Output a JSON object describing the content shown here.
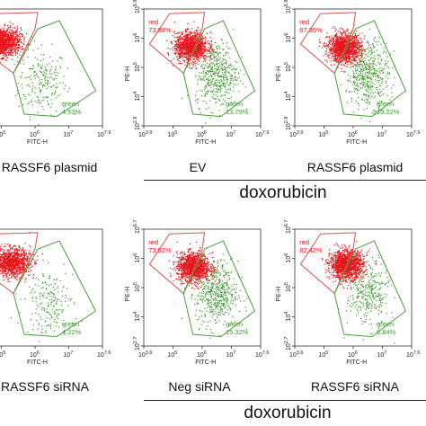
{
  "colors": {
    "red": "#e8141b",
    "green": "#3a9a2a",
    "gate_red": "#d9534f",
    "gate_green": "#4aa03a",
    "axis": "#333333"
  },
  "chart_data": [
    {
      "type": "scatter",
      "caption": "RASSF6 plasmid",
      "xlabel": "FITC-H",
      "ylabel": "",
      "x_ticks": [
        "",
        "10^5",
        "10^6",
        "10^7",
        "10^7.9"
      ],
      "y_ticks": [],
      "gates": [
        {
          "name": "red",
          "percent": ""
        },
        {
          "name": "green",
          "percent": "4.53%"
        }
      ],
      "populations": {
        "red": {
          "cx": 0.25,
          "cy": 0.72,
          "n": 1400
        },
        "green": {
          "cx": 0.55,
          "cy": 0.38,
          "n": 220
        }
      }
    },
    {
      "type": "scatter",
      "caption": "EV",
      "xlabel": "FITC-H",
      "ylabel": "PE-H",
      "x_ticks": [
        "10^3.9",
        "10^5",
        "10^6",
        "10^7",
        "10^7.9"
      ],
      "y_ticks": [
        "10^2.8",
        "10^4",
        "10^5",
        "10^6",
        "10^6.8"
      ],
      "gates": [
        {
          "name": "red",
          "percent": "73.88%"
        },
        {
          "name": "green",
          "percent": "13.79%"
        }
      ],
      "populations": {
        "red": {
          "cx": 0.4,
          "cy": 0.68,
          "n": 1300
        },
        "green": {
          "cx": 0.62,
          "cy": 0.45,
          "n": 480
        }
      }
    },
    {
      "type": "scatter",
      "caption": "RASSF6 plasmid",
      "xlabel": "FITC-H",
      "ylabel": "PE-H",
      "x_ticks": [
        "10^3.9",
        "10^5",
        "10^6",
        "10^7",
        "10^7.9"
      ],
      "y_ticks": [
        "10^2.8",
        "10^4",
        "10^5",
        "10^6",
        "10^6.8"
      ],
      "gates": [
        {
          "name": "red",
          "percent": "67.35%"
        },
        {
          "name": "green",
          "percent": "19.22%"
        }
      ],
      "populations": {
        "red": {
          "cx": 0.42,
          "cy": 0.67,
          "n": 1300
        },
        "green": {
          "cx": 0.62,
          "cy": 0.45,
          "n": 520
        }
      }
    },
    {
      "type": "scatter",
      "caption": "RASSF6 siRNA",
      "xlabel": "FITC-H",
      "ylabel": "",
      "x_ticks": [
        "",
        "10^5",
        "10^6",
        "10^7",
        "10^7.6"
      ],
      "y_ticks": [],
      "gates": [
        {
          "name": "red",
          "percent": ""
        },
        {
          "name": "green",
          "percent": "4.22%"
        }
      ],
      "populations": {
        "red": {
          "cx": 0.32,
          "cy": 0.72,
          "n": 1200
        },
        "green": {
          "cx": 0.6,
          "cy": 0.38,
          "n": 200
        }
      }
    },
    {
      "type": "scatter",
      "caption": "Neg  siRNA",
      "xlabel": "FITC-H",
      "ylabel": "PE-H",
      "x_ticks": [
        "10^3.6",
        "10^5",
        "10^6",
        "10^7",
        "10^7.6"
      ],
      "y_ticks": [
        "10^2.7",
        "10^4",
        "10^5",
        "10^6",
        "10^6.7"
      ],
      "gates": [
        {
          "name": "red",
          "percent": "73.92%"
        },
        {
          "name": "green",
          "percent": "15.32%"
        }
      ],
      "populations": {
        "red": {
          "cx": 0.42,
          "cy": 0.68,
          "n": 1300
        },
        "green": {
          "cx": 0.62,
          "cy": 0.45,
          "n": 500
        }
      }
    },
    {
      "type": "scatter",
      "caption": "RASSF6 siRNA",
      "xlabel": "FITC-H",
      "ylabel": "PE-H",
      "x_ticks": [
        "10^3.6",
        "10^5",
        "10^6",
        "10^7",
        "10^7.6"
      ],
      "y_ticks": [
        "10^2.7",
        "10^4",
        "10^5",
        "10^6",
        "10^6.7"
      ],
      "gates": [
        {
          "name": "red",
          "percent": "82.42%"
        },
        {
          "name": "green",
          "percent": "8.84%"
        }
      ],
      "populations": {
        "red": {
          "cx": 0.44,
          "cy": 0.7,
          "n": 1400
        },
        "green": {
          "cx": 0.62,
          "cy": 0.45,
          "n": 330
        }
      }
    }
  ],
  "group_labels": [
    "doxorubicin",
    "doxorubicin"
  ]
}
